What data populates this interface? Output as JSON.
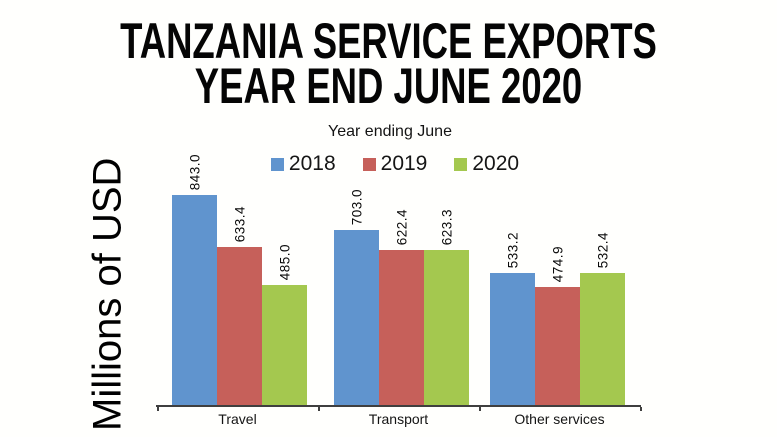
{
  "title": {
    "line1": "TANZANIA SERVICE EXPORTS",
    "line2": "YEAR END JUNE 2020"
  },
  "chart_data": {
    "type": "bar",
    "title": "TANZANIA SERVICE EXPORTS YEAR END JUNE 2020",
    "legend_title": "Year ending June",
    "legend_position": "top",
    "ylabel": "Millions of USD",
    "xlabel": "",
    "grid": false,
    "y_axis_ticks_visible": false,
    "value_labels": "rotated 90deg above bars, one decimal",
    "ylim": [
      0,
      880
    ],
    "categories": [
      "Travel",
      "Transport",
      "Other services"
    ],
    "series": [
      {
        "name": "2018",
        "color": "#6094CE",
        "values": [
          843.0,
          703.0,
          533.2
        ]
      },
      {
        "name": "2019",
        "color": "#C6605A",
        "values": [
          633.4,
          622.4,
          474.9
        ]
      },
      {
        "name": "2020",
        "color": "#A4C84F",
        "values": [
          485.0,
          623.3,
          532.4
        ]
      }
    ]
  },
  "colors": {
    "background": "#fffffd",
    "title_text": "#050505",
    "axis_line": "#3f3f3f",
    "label_text": "#141414",
    "series_2018": "#6094CE",
    "series_2019": "#C6605A",
    "series_2020": "#A4C84F"
  }
}
